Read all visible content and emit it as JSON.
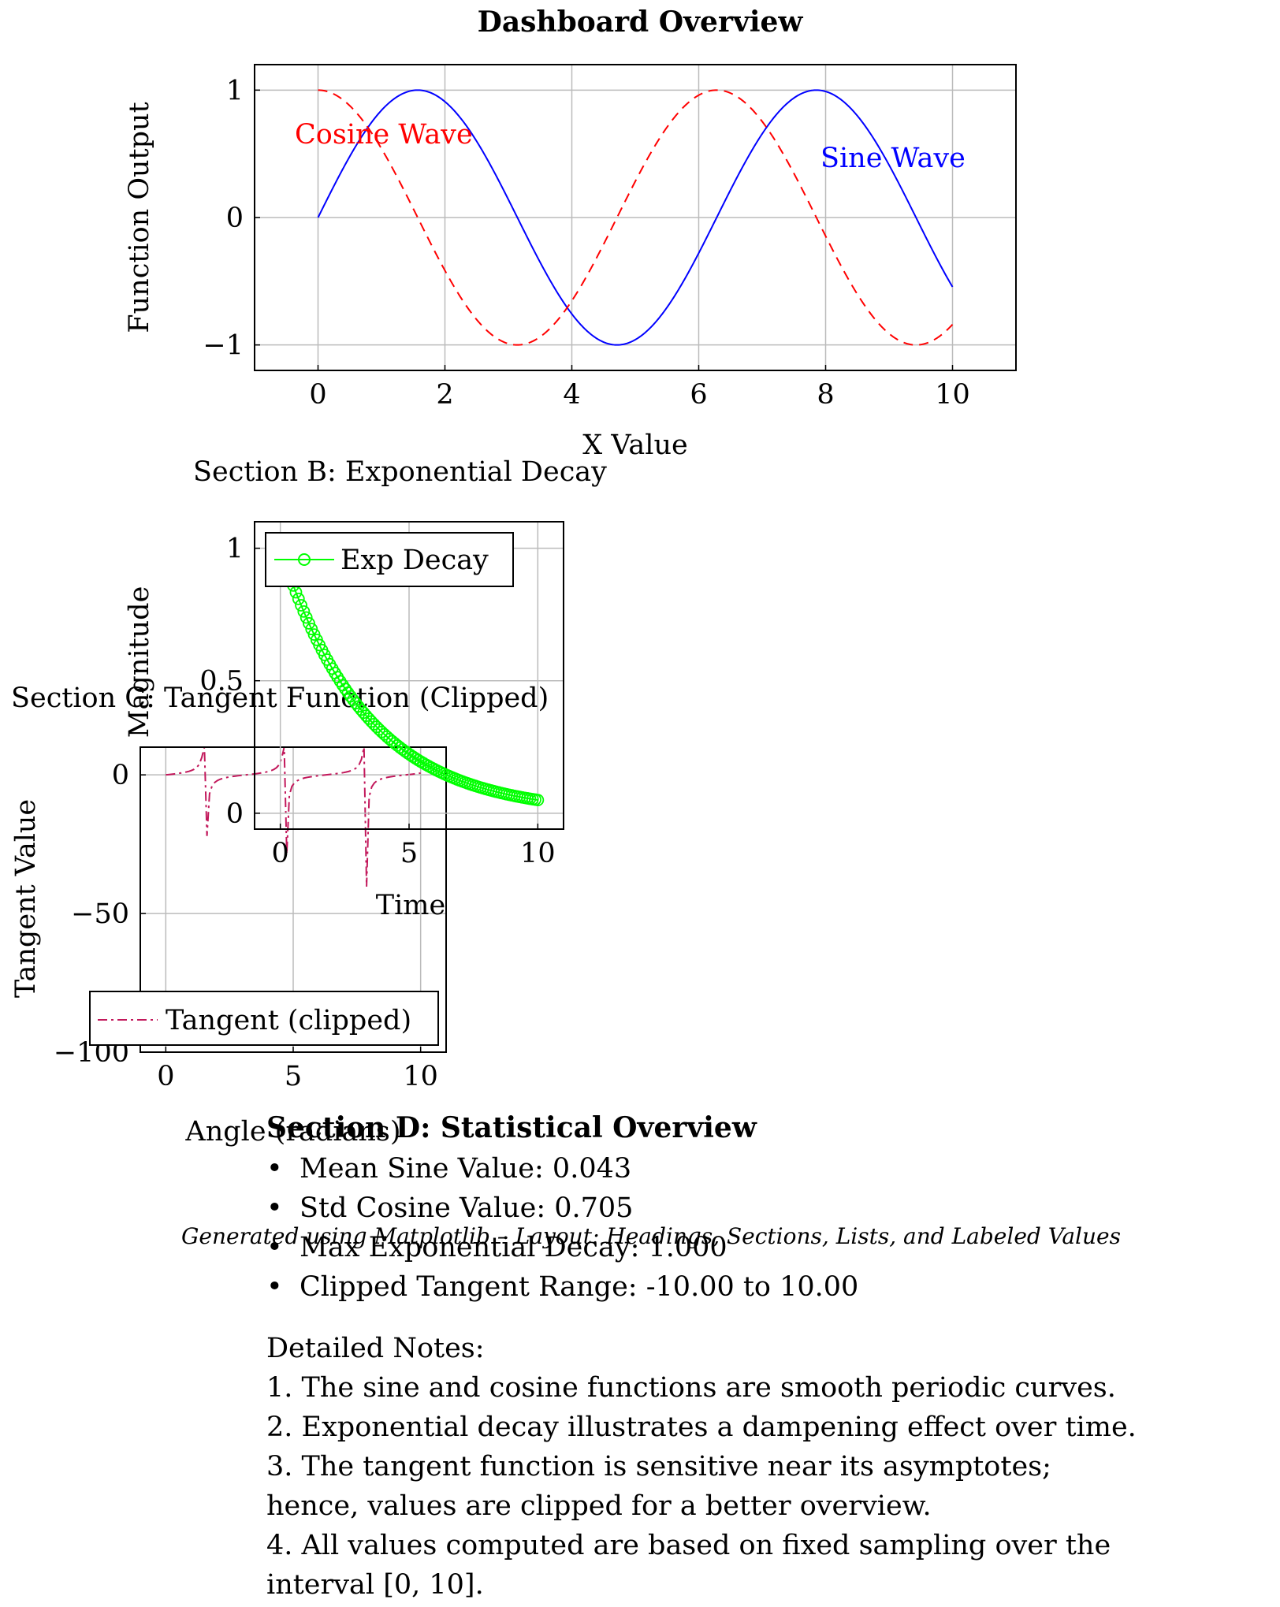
{
  "page": {
    "title": "Dashboard Overview",
    "footer": "Generated using Matplotlib – Layout: Headings, Sections, Lists, and Labeled Values"
  },
  "chart_data": [
    {
      "id": "A",
      "type": "line",
      "title": "",
      "xlabel": "X Value",
      "ylabel": "Function Output",
      "xlim": [
        -1,
        11
      ],
      "ylim": [
        -1.2,
        1.2
      ],
      "xticks": [
        0,
        2,
        4,
        6,
        8,
        10
      ],
      "yticks": [
        -1,
        0,
        1
      ],
      "ytick_labels": [
        "−1",
        "0",
        "1"
      ],
      "grid": true,
      "series": [
        {
          "name": "Sine Wave",
          "function": "sin(x)",
          "x_range": [
            0,
            10
          ],
          "color": "#0000ff",
          "style": "solid"
        },
        {
          "name": "Cosine Wave",
          "function": "cos(x)",
          "x_range": [
            0,
            10
          ],
          "color": "#ff0000",
          "style": "dashed"
        }
      ],
      "annotations": [
        {
          "text": "Cosine Wave",
          "x": 1.05,
          "y": 0.65,
          "color": "#ff0000"
        },
        {
          "text": "Sine Wave",
          "x": 9.1,
          "y": 0.47,
          "color": "#0000ff"
        }
      ]
    },
    {
      "id": "B",
      "type": "line",
      "title": "Section B: Exponential Decay",
      "xlabel": "Time",
      "ylabel": "Magnitude",
      "xlim": [
        -1,
        11
      ],
      "ylim": [
        -0.06,
        1.1
      ],
      "xticks": [
        0,
        5,
        10
      ],
      "yticks": [
        0,
        0.5,
        1
      ],
      "ytick_labels": [
        "0",
        "0.5",
        "1"
      ],
      "grid": true,
      "legend": "top-left",
      "series": [
        {
          "name": "Exp Decay",
          "function": "exp(-0.3x)",
          "x_range": [
            0,
            10
          ],
          "samples": 100,
          "color": "#00ff00",
          "marker": "circle"
        }
      ]
    },
    {
      "id": "C",
      "type": "line",
      "title": "Section C: Tangent Function (Clipped)",
      "xlabel": "Angle (radians)",
      "ylabel": "Tangent Value",
      "xlim": [
        -1,
        11
      ],
      "ylim": [
        -100,
        10
      ],
      "xticks": [
        0,
        5,
        10
      ],
      "yticks": [
        -100,
        -50,
        0
      ],
      "ytick_labels": [
        "−100",
        "−50",
        "0"
      ],
      "grid": true,
      "legend": "bottom-left",
      "series": [
        {
          "name": "Tangent (clipped)",
          "function": "tan(x)",
          "x_range": [
            0,
            10
          ],
          "color": "#c2185b",
          "style": "dashdot"
        }
      ]
    }
  ],
  "stats": {
    "heading": "Section D: Statistical Overview",
    "items": [
      "Mean Sine Value: 0.043",
      "Std Cosine Value: 0.705",
      "Max Exponential Decay: 1.000",
      "Clipped Tangent Range: -10.00 to 10.00"
    ]
  },
  "notes": {
    "heading": "Detailed Notes:",
    "lines": [
      "1.  The sine and cosine functions are smooth periodic curves.",
      "2.  Exponential decay illustrates a dampening effect over time.",
      "3.  The tangent function is sensitive near its asymptotes;",
      "hence, values are clipped for a better overview.",
      "4.  All values computed are based on fixed sampling over the",
      "interval [0, 10]."
    ]
  }
}
